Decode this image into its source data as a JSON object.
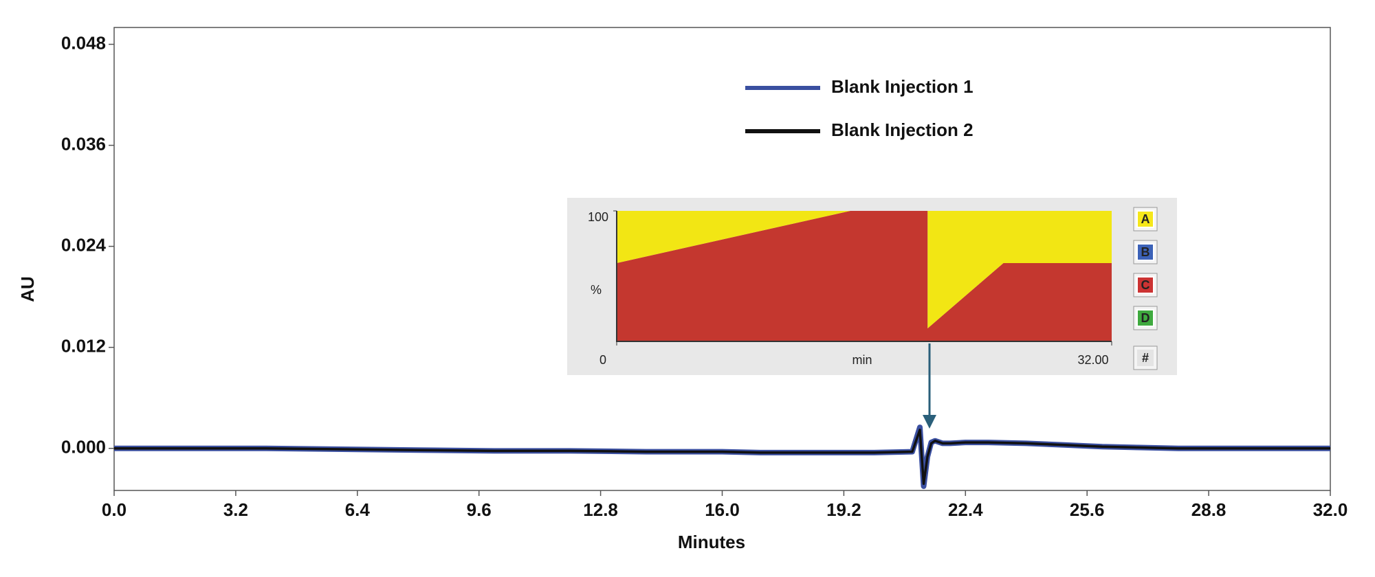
{
  "chart_data": [
    {
      "type": "line",
      "xlabel": "Minutes",
      "ylabel": "AU",
      "x": [
        0,
        2,
        4,
        6,
        8,
        10,
        12,
        14,
        16,
        17,
        18,
        19,
        20,
        21,
        21.2,
        21.3,
        21.4,
        21.5,
        21.6,
        21.8,
        22,
        22.4,
        23,
        24,
        25,
        26,
        27,
        28,
        30,
        32
      ],
      "series": [
        {
          "name": "Blank Injection 1",
          "color": "#3a4fa0",
          "values": [
            0,
            0,
            0,
            -0.0001,
            -0.0002,
            -0.0003,
            -0.0003,
            -0.0004,
            -0.0004,
            -0.0005,
            -0.0005,
            -0.0005,
            -0.0005,
            -0.0004,
            0.0025,
            -0.0045,
            -0.001,
            0.0007,
            0.0009,
            0.0006,
            0.0006,
            0.0007,
            0.0007,
            0.0006,
            0.0004,
            0.0002,
            0.0001,
            0,
            0,
            0
          ]
        },
        {
          "name": "Blank Injection 2",
          "color": "#111111",
          "values": [
            0,
            0,
            0,
            -0.0001,
            -0.0002,
            -0.0003,
            -0.0003,
            -0.0004,
            -0.0004,
            -0.0005,
            -0.0005,
            -0.0005,
            -0.0005,
            -0.0004,
            0.0022,
            -0.0042,
            -0.001,
            0.0006,
            0.0009,
            0.0006,
            0.0006,
            0.0007,
            0.0007,
            0.0006,
            0.0004,
            0.0002,
            0.0001,
            0,
            0,
            0
          ]
        }
      ],
      "xlim": [
        0,
        32
      ],
      "xticks": [
        {
          "value": 0,
          "label": "0.0"
        },
        3.2,
        6.4,
        9.6,
        12.8,
        {
          "value": 16,
          "label": "16.0"
        },
        19.2,
        22.4,
        25.6,
        28.8,
        {
          "value": 32,
          "label": "32.0"
        }
      ],
      "ylim": [
        -0.005,
        0.05
      ],
      "yticks": [
        {
          "value": 0,
          "label": "0.000"
        },
        0.012,
        0.024,
        0.036,
        0.048
      ],
      "legend": "top-center"
    },
    {
      "type": "area",
      "xlabel": "min",
      "ylabel": "%",
      "x": [
        0,
        15.1,
        20.1,
        20.1,
        25,
        32
      ],
      "series": [
        {
          "name": "C",
          "color": "#c4372f",
          "values": [
            60,
            100,
            100,
            10,
            60,
            60
          ]
        },
        {
          "name": "A",
          "color": "#f2e614",
          "values": [
            40,
            0,
            0,
            90,
            40,
            40
          ]
        }
      ],
      "stacked": true,
      "xlim": [
        0,
        32
      ],
      "xticks": [
        0,
        {
          "value": 32,
          "label": "32.00"
        }
      ],
      "ylim": [
        0,
        100
      ],
      "yticks": [
        100
      ],
      "buttons": [
        "A",
        "B",
        "C",
        "D",
        "#"
      ],
      "button_colors": [
        "#f5e71a",
        "#3c62b8",
        "#cc3333",
        "#3faa3f",
        "#e4e4e4"
      ]
    }
  ]
}
